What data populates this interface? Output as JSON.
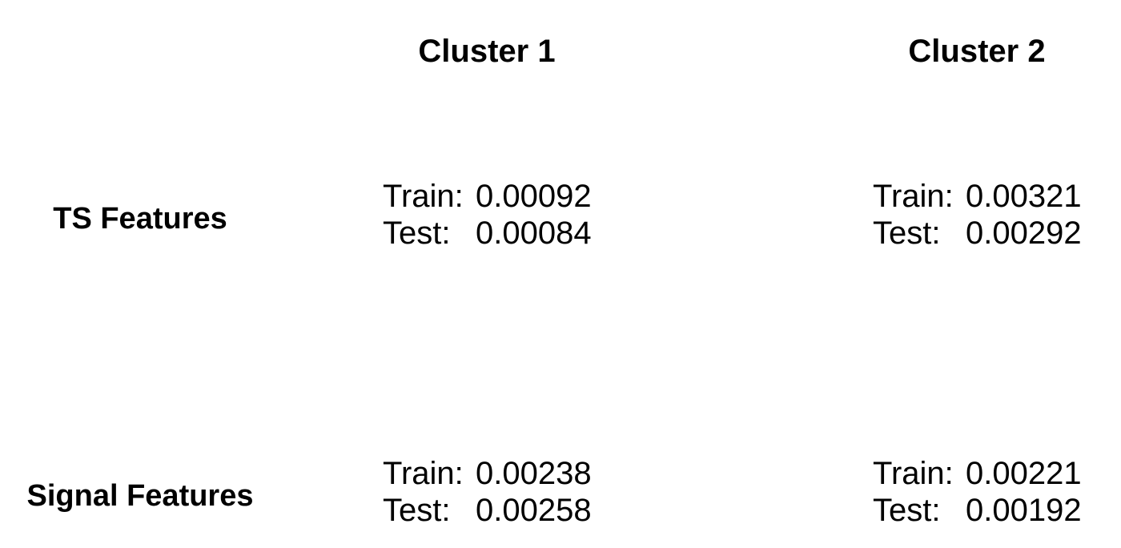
{
  "chart_data": {
    "type": "table",
    "columns": [
      "Cluster 1",
      "Cluster 2"
    ],
    "rows": [
      "TS Features",
      "Signal Features"
    ],
    "cells": [
      [
        {
          "train_label": "Train:",
          "train": "0.00092",
          "test_label": "Test:",
          "test": "0.00084"
        },
        {
          "train_label": "Train:",
          "train": "0.00321",
          "test_label": "Test:",
          "test": "0.00292"
        }
      ],
      [
        {
          "train_label": "Train:",
          "train": "0.00238",
          "test_label": "Test:",
          "test": "0.00258"
        },
        {
          "train_label": "Train:",
          "train": "0.00221",
          "test_label": "Test:",
          "test": "0.00192"
        }
      ]
    ]
  }
}
